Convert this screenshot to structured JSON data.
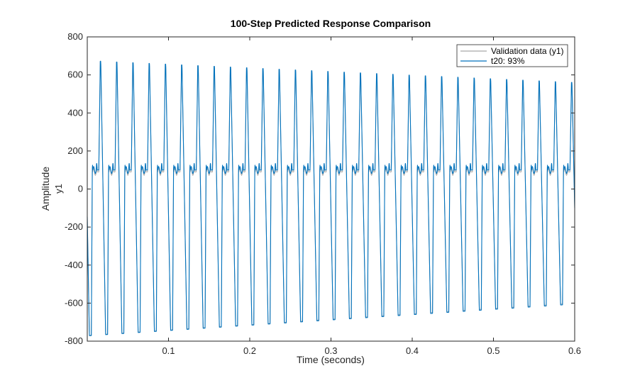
{
  "chart_data": {
    "type": "line",
    "title": "100-Step Predicted Response Comparison",
    "xlabel": "Time (seconds)",
    "ylabel": "Amplitude",
    "channel_label": "y1",
    "xlim": [
      0,
      0.6
    ],
    "ylim": [
      -800,
      800
    ],
    "x_ticks": [
      0.1,
      0.2,
      0.3,
      0.4,
      0.5,
      0.6
    ],
    "x_tick_labels": [
      "0.1",
      "0.2",
      "0.3",
      "0.4",
      "0.5",
      "0.6"
    ],
    "y_ticks": [
      -800,
      -600,
      -400,
      -200,
      0,
      200,
      400,
      600,
      800
    ],
    "y_tick_labels": [
      "-800",
      "-600",
      "-400",
      "-200",
      "0",
      "200",
      "400",
      "600",
      "800"
    ],
    "grid": false,
    "legend_position": "top-right",
    "series": [
      {
        "name": "Validation data (y1)",
        "color": "#a6a6a6",
        "signal": {
          "period": 0.02,
          "plateau": 90,
          "peak_start": 672,
          "peak_end": 555,
          "trough_start": -770,
          "trough_end": -600
        }
      },
      {
        "name": "t20:  93%",
        "color": "#0072bd",
        "signal": {
          "period": 0.02,
          "plateau": 100,
          "peak_start": 675,
          "peak_end": 560,
          "trough_start": -772,
          "trough_end": -605
        }
      }
    ]
  }
}
